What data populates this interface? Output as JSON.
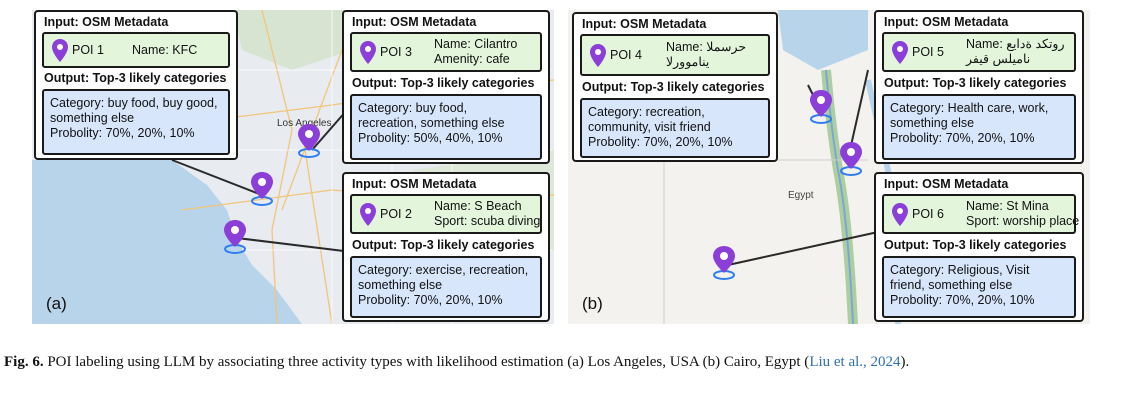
{
  "labels": {
    "input_title": "Input: OSM Metadata",
    "output_title": "Output: Top-3 likely categories"
  },
  "panel_a": {
    "label": "(a)",
    "map_text": [
      "Los Angeles"
    ],
    "cards": {
      "poi1": {
        "id": "POI 1",
        "meta": [
          "Name:  KFC"
        ],
        "output": [
          "Category: buy food, buy good,",
          "something else",
          "Probolity: 70%, 20%, 10%"
        ]
      },
      "poi3": {
        "id": "POI 3",
        "meta": [
          "Name: Cilantro",
          "Amenity:  cafe"
        ],
        "output": [
          "Category: buy food,",
          "recreation, something else",
          "Probolity: 50%, 40%, 10%"
        ]
      },
      "poi2": {
        "id": "POI 2",
        "meta": [
          "Name: S Beach",
          "Sport: scuba diving"
        ],
        "output": [
          "Category: exercise, recreation,",
          "something else",
          "Probolity: 70%, 20%, 10%"
        ]
      }
    }
  },
  "panel_b": {
    "label": "(b)",
    "map_text": [
      "Egypt"
    ],
    "cards": {
      "poi4": {
        "id": "POI 4",
        "meta": [
          "Name: حرسملا",
          "يناموورلا"
        ],
        "output": [
          "Category: recreation,",
          "community, visit friend",
          "Probolity: 70%, 20%, 10%"
        ]
      },
      "poi5": {
        "id": "POI 5",
        "meta": [
          "Name: روتكد ةدايع",
          "ناميلس قيفر"
        ],
        "output": [
          "Category: Health care, work,",
          "something else",
          "Probolity: 70%, 20%, 10%"
        ]
      },
      "poi6": {
        "id": "POI 6",
        "meta": [
          "Name: St Mina",
          "Sport: worship place"
        ],
        "output": [
          "Category: Religious, Visit",
          "friend, something else",
          "Probolity: 70%, 20%, 10%"
        ]
      }
    }
  },
  "caption": {
    "fig_label": "Fig. 6.",
    "text": " POI labeling using LLM by associating three activity types with likelihood estimation (a) Los Angeles, USA (b) Cairo, Egypt (",
    "cite": "Liu et al., 2024",
    "end": ")."
  },
  "colors": {
    "pin": "#8b3fd8",
    "pin_ring": "#2f7df0",
    "input_box": "#e3f6dc",
    "output_box": "#d7e6fb",
    "link": "#2f6fae"
  },
  "icons": {
    "poi": "location-pin-icon",
    "map_marker": "map-marker-icon"
  }
}
